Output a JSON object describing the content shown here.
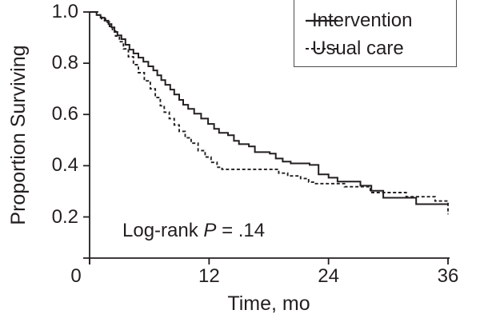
{
  "figure": {
    "ink_color": "#231f20",
    "background_color": "#ffffff",
    "legend_border_color": "#4d4d4d"
  },
  "chart_data": {
    "type": "line",
    "subtype": "kaplan-meier-step",
    "title": "",
    "xlabel": "Time, mo",
    "ylabel": "Proportion Surviving",
    "xlim": [
      0,
      36
    ],
    "ylim": [
      0.04,
      1.0
    ],
    "grid": false,
    "xticks": [
      0,
      12,
      24,
      36
    ],
    "xtick_labels": [
      "0",
      "12",
      "24",
      "36"
    ],
    "yticks": [
      1.0,
      0.8,
      0.6,
      0.4,
      0.2
    ],
    "ytick_labels": [
      "1.0",
      "0.8",
      "0.6",
      "0.4",
      "0.2"
    ],
    "annotation": {
      "pre": "Log-rank ",
      "var": "P",
      "post": " = .14"
    },
    "legend": {
      "position": "top-right",
      "entries": [
        {
          "label": "Intervention",
          "style": "solid"
        },
        {
          "label": "Usual care",
          "style": "dashed"
        }
      ]
    },
    "series": [
      {
        "name": "Intervention",
        "line": "solid",
        "points": [
          [
            0,
            1.0
          ],
          [
            0.7,
            0.988
          ],
          [
            1.1,
            0.978
          ],
          [
            1.5,
            0.966
          ],
          [
            1.9,
            0.953
          ],
          [
            2.2,
            0.94
          ],
          [
            2.5,
            0.922
          ],
          [
            2.8,
            0.909
          ],
          [
            3.2,
            0.894
          ],
          [
            3.6,
            0.872
          ],
          [
            4.0,
            0.853
          ],
          [
            4.4,
            0.838
          ],
          [
            4.9,
            0.822
          ],
          [
            5.4,
            0.806
          ],
          [
            5.9,
            0.788
          ],
          [
            6.4,
            0.772
          ],
          [
            6.8,
            0.753
          ],
          [
            7.2,
            0.734
          ],
          [
            7.6,
            0.716
          ],
          [
            8.1,
            0.697
          ],
          [
            8.5,
            0.678
          ],
          [
            9.0,
            0.657
          ],
          [
            9.4,
            0.638
          ],
          [
            9.9,
            0.622
          ],
          [
            10.5,
            0.603
          ],
          [
            11.2,
            0.584
          ],
          [
            11.9,
            0.563
          ],
          [
            12.5,
            0.544
          ],
          [
            13.0,
            0.528
          ],
          [
            13.9,
            0.519
          ],
          [
            14.5,
            0.497
          ],
          [
            15.0,
            0.484
          ],
          [
            16.0,
            0.475
          ],
          [
            16.6,
            0.453
          ],
          [
            18.1,
            0.447
          ],
          [
            18.7,
            0.428
          ],
          [
            19.4,
            0.416
          ],
          [
            20.2,
            0.409
          ],
          [
            22.1,
            0.403
          ],
          [
            23.0,
            0.366
          ],
          [
            24.0,
            0.353
          ],
          [
            24.9,
            0.338
          ],
          [
            27.2,
            0.322
          ],
          [
            28.3,
            0.302
          ],
          [
            29.5,
            0.275
          ],
          [
            32.8,
            0.25
          ],
          [
            36,
            0.25
          ]
        ]
      },
      {
        "name": "Usual care",
        "line": "dashed",
        "points": [
          [
            0,
            1.0
          ],
          [
            0.8,
            0.988
          ],
          [
            1.2,
            0.974
          ],
          [
            1.6,
            0.96
          ],
          [
            2.0,
            0.944
          ],
          [
            2.3,
            0.925
          ],
          [
            2.6,
            0.906
          ],
          [
            3.0,
            0.884
          ],
          [
            3.4,
            0.856
          ],
          [
            3.9,
            0.825
          ],
          [
            4.4,
            0.794
          ],
          [
            4.9,
            0.763
          ],
          [
            5.5,
            0.731
          ],
          [
            6.1,
            0.7
          ],
          [
            6.6,
            0.666
          ],
          [
            7.1,
            0.634
          ],
          [
            7.5,
            0.609
          ],
          [
            8.0,
            0.584
          ],
          [
            8.5,
            0.559
          ],
          [
            9.0,
            0.534
          ],
          [
            9.6,
            0.509
          ],
          [
            10.2,
            0.488
          ],
          [
            10.9,
            0.459
          ],
          [
            11.6,
            0.434
          ],
          [
            12.2,
            0.413
          ],
          [
            12.8,
            0.394
          ],
          [
            13.3,
            0.386
          ],
          [
            19.0,
            0.371
          ],
          [
            19.9,
            0.36
          ],
          [
            21.2,
            0.35
          ],
          [
            22.0,
            0.336
          ],
          [
            22.6,
            0.33
          ],
          [
            25.6,
            0.318
          ],
          [
            28.2,
            0.295
          ],
          [
            31.8,
            0.279
          ],
          [
            34.7,
            0.262
          ],
          [
            36,
            0.21
          ]
        ]
      }
    ]
  }
}
